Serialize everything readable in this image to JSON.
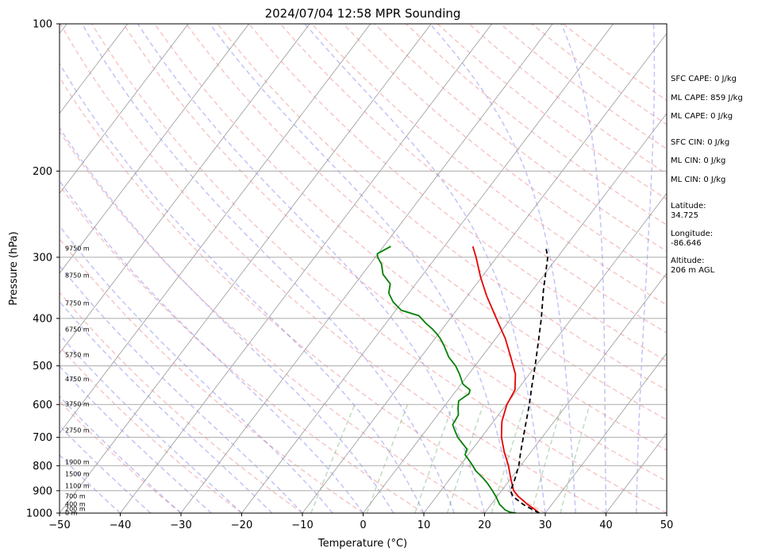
{
  "chart_data": {
    "type": "skew-t",
    "title": "2024/07/04 12:58 MPR Sounding",
    "xlabel": "Temperature (°C)",
    "ylabel": "Pressure (hPa)",
    "xlim": [
      -50,
      50
    ],
    "ylim": [
      1000,
      100
    ],
    "y_scale": "log",
    "x_ticks": [
      "−50",
      "−40",
      "−30",
      "−20",
      "−10",
      "0",
      "10",
      "20",
      "30",
      "40",
      "50"
    ],
    "y_ticks": [
      "100",
      "200",
      "300",
      "400",
      "500",
      "600",
      "700",
      "800",
      "900",
      "1000"
    ],
    "grid": true,
    "height_labels": [
      "9750 m",
      "8750 m",
      "7750 m",
      "6750 m",
      "5750 m",
      "4750 m",
      "3750 m",
      "2750 m",
      "1900 m",
      "1500 m",
      "1100 m",
      "700 m",
      "400 m",
      "200 m",
      "0 m"
    ],
    "height_label_pressures": [
      288,
      327,
      373,
      422,
      475,
      533,
      599,
      678,
      787,
      832,
      880,
      925,
      960,
      981,
      1000
    ],
    "temperature": {
      "color": "#e50000",
      "p": [
        1000,
        985,
        960,
        925,
        900,
        850,
        800,
        750,
        700,
        650,
        600,
        560,
        520,
        480,
        440,
        400,
        360,
        330,
        300,
        285
      ],
      "t": [
        29,
        28,
        26,
        23.5,
        22,
        20,
        18,
        15.6,
        13.3,
        11.4,
        10.1,
        9.6,
        7.7,
        4.8,
        1.6,
        -2.4,
        -6.8,
        -10.1,
        -13.4,
        -15.3
      ]
    },
    "dewpoint": {
      "color": "#008000",
      "p": [
        1000,
        995,
        985,
        960,
        925,
        900,
        870,
        850,
        820,
        790,
        760,
        740,
        700,
        680,
        660,
        630,
        610,
        590,
        570,
        560,
        545,
        520,
        500,
        480,
        455,
        440,
        430,
        420,
        410,
        395,
        385,
        370,
        355,
        340,
        325,
        310,
        300,
        295,
        285
      ],
      "td": [
        25.2,
        24,
        23,
        21.4,
        19.8,
        18.5,
        16.8,
        15.5,
        13.3,
        11.5,
        9.5,
        9.1,
        6.1,
        4.9,
        3.7,
        3.4,
        2.5,
        1.7,
        2.5,
        2.2,
        0.3,
        -1.5,
        -3.2,
        -5.4,
        -7.6,
        -9.1,
        -10.3,
        -11.7,
        -13.3,
        -15.5,
        -19.1,
        -21.5,
        -23.3,
        -24.2,
        -26.6,
        -28.1,
        -29.6,
        -30.1,
        -28.8
      ]
    },
    "parcel": {
      "color": "#000000",
      "style": "dashed",
      "p": [
        1000,
        985,
        960,
        925,
        900,
        850,
        800,
        750,
        700,
        650,
        600,
        550,
        500,
        450,
        400,
        350,
        300,
        285
      ],
      "t": [
        29,
        27.6,
        25.3,
        22.6,
        21.5,
        20.7,
        19.7,
        18.3,
        16.9,
        15.4,
        13.8,
        11.9,
        9.9,
        7.6,
        5,
        1.8,
        -1.6,
        -3.3
      ]
    },
    "stats": {
      "sfc_cape": "SFC CAPE: 0 J/kg",
      "ml_cape_1": "ML CAPE: 859 J/kg",
      "ml_cape_2": "ML CAPE: 0 J/kg",
      "sfc_cin": "SFC CIN: 0 J/kg",
      "ml_cin_1": "ML CIN: 0 J/kg",
      "ml_cin_2": "ML CIN: 0 J/kg",
      "latitude_label": "Latitude:",
      "latitude": "34.725",
      "longitude_label": "Longitude:",
      "longitude": "-86.646",
      "altitude_label": "Altitude:",
      "altitude": "206 m AGL"
    }
  }
}
